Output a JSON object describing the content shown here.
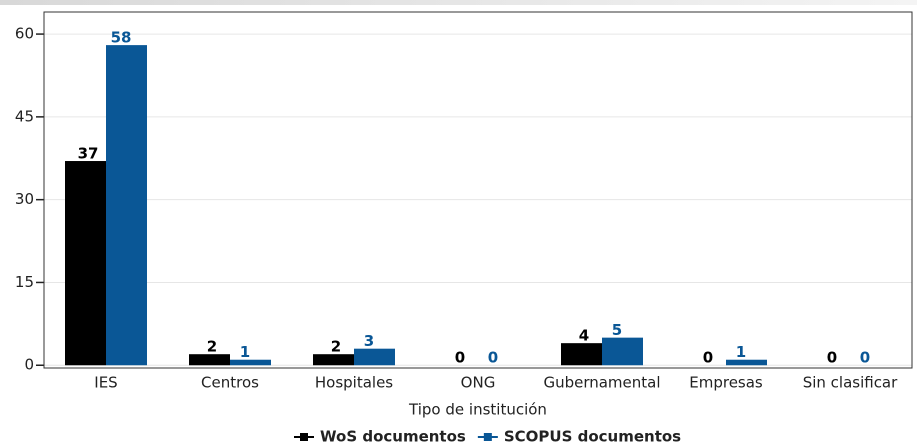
{
  "chart_data": {
    "type": "bar",
    "x_label": "Tipo de institución",
    "categories": [
      "IES",
      "Centros",
      "Hospitales",
      "ONG",
      "Gubernamental",
      "Empresas",
      "Sin clasificar"
    ],
    "series": [
      {
        "name": "WoS documentos",
        "color": "#000000",
        "values": [
          37,
          2,
          2,
          0,
          4,
          0,
          0
        ]
      },
      {
        "name": "SCOPUS documentos",
        "color": "#0a5796",
        "values": [
          58,
          1,
          3,
          0,
          5,
          1,
          0
        ]
      }
    ],
    "ylim": [
      -0.5,
      64
    ],
    "yticks": [
      0,
      15,
      30,
      45,
      60
    ],
    "grid": true,
    "legend": "bottom"
  }
}
